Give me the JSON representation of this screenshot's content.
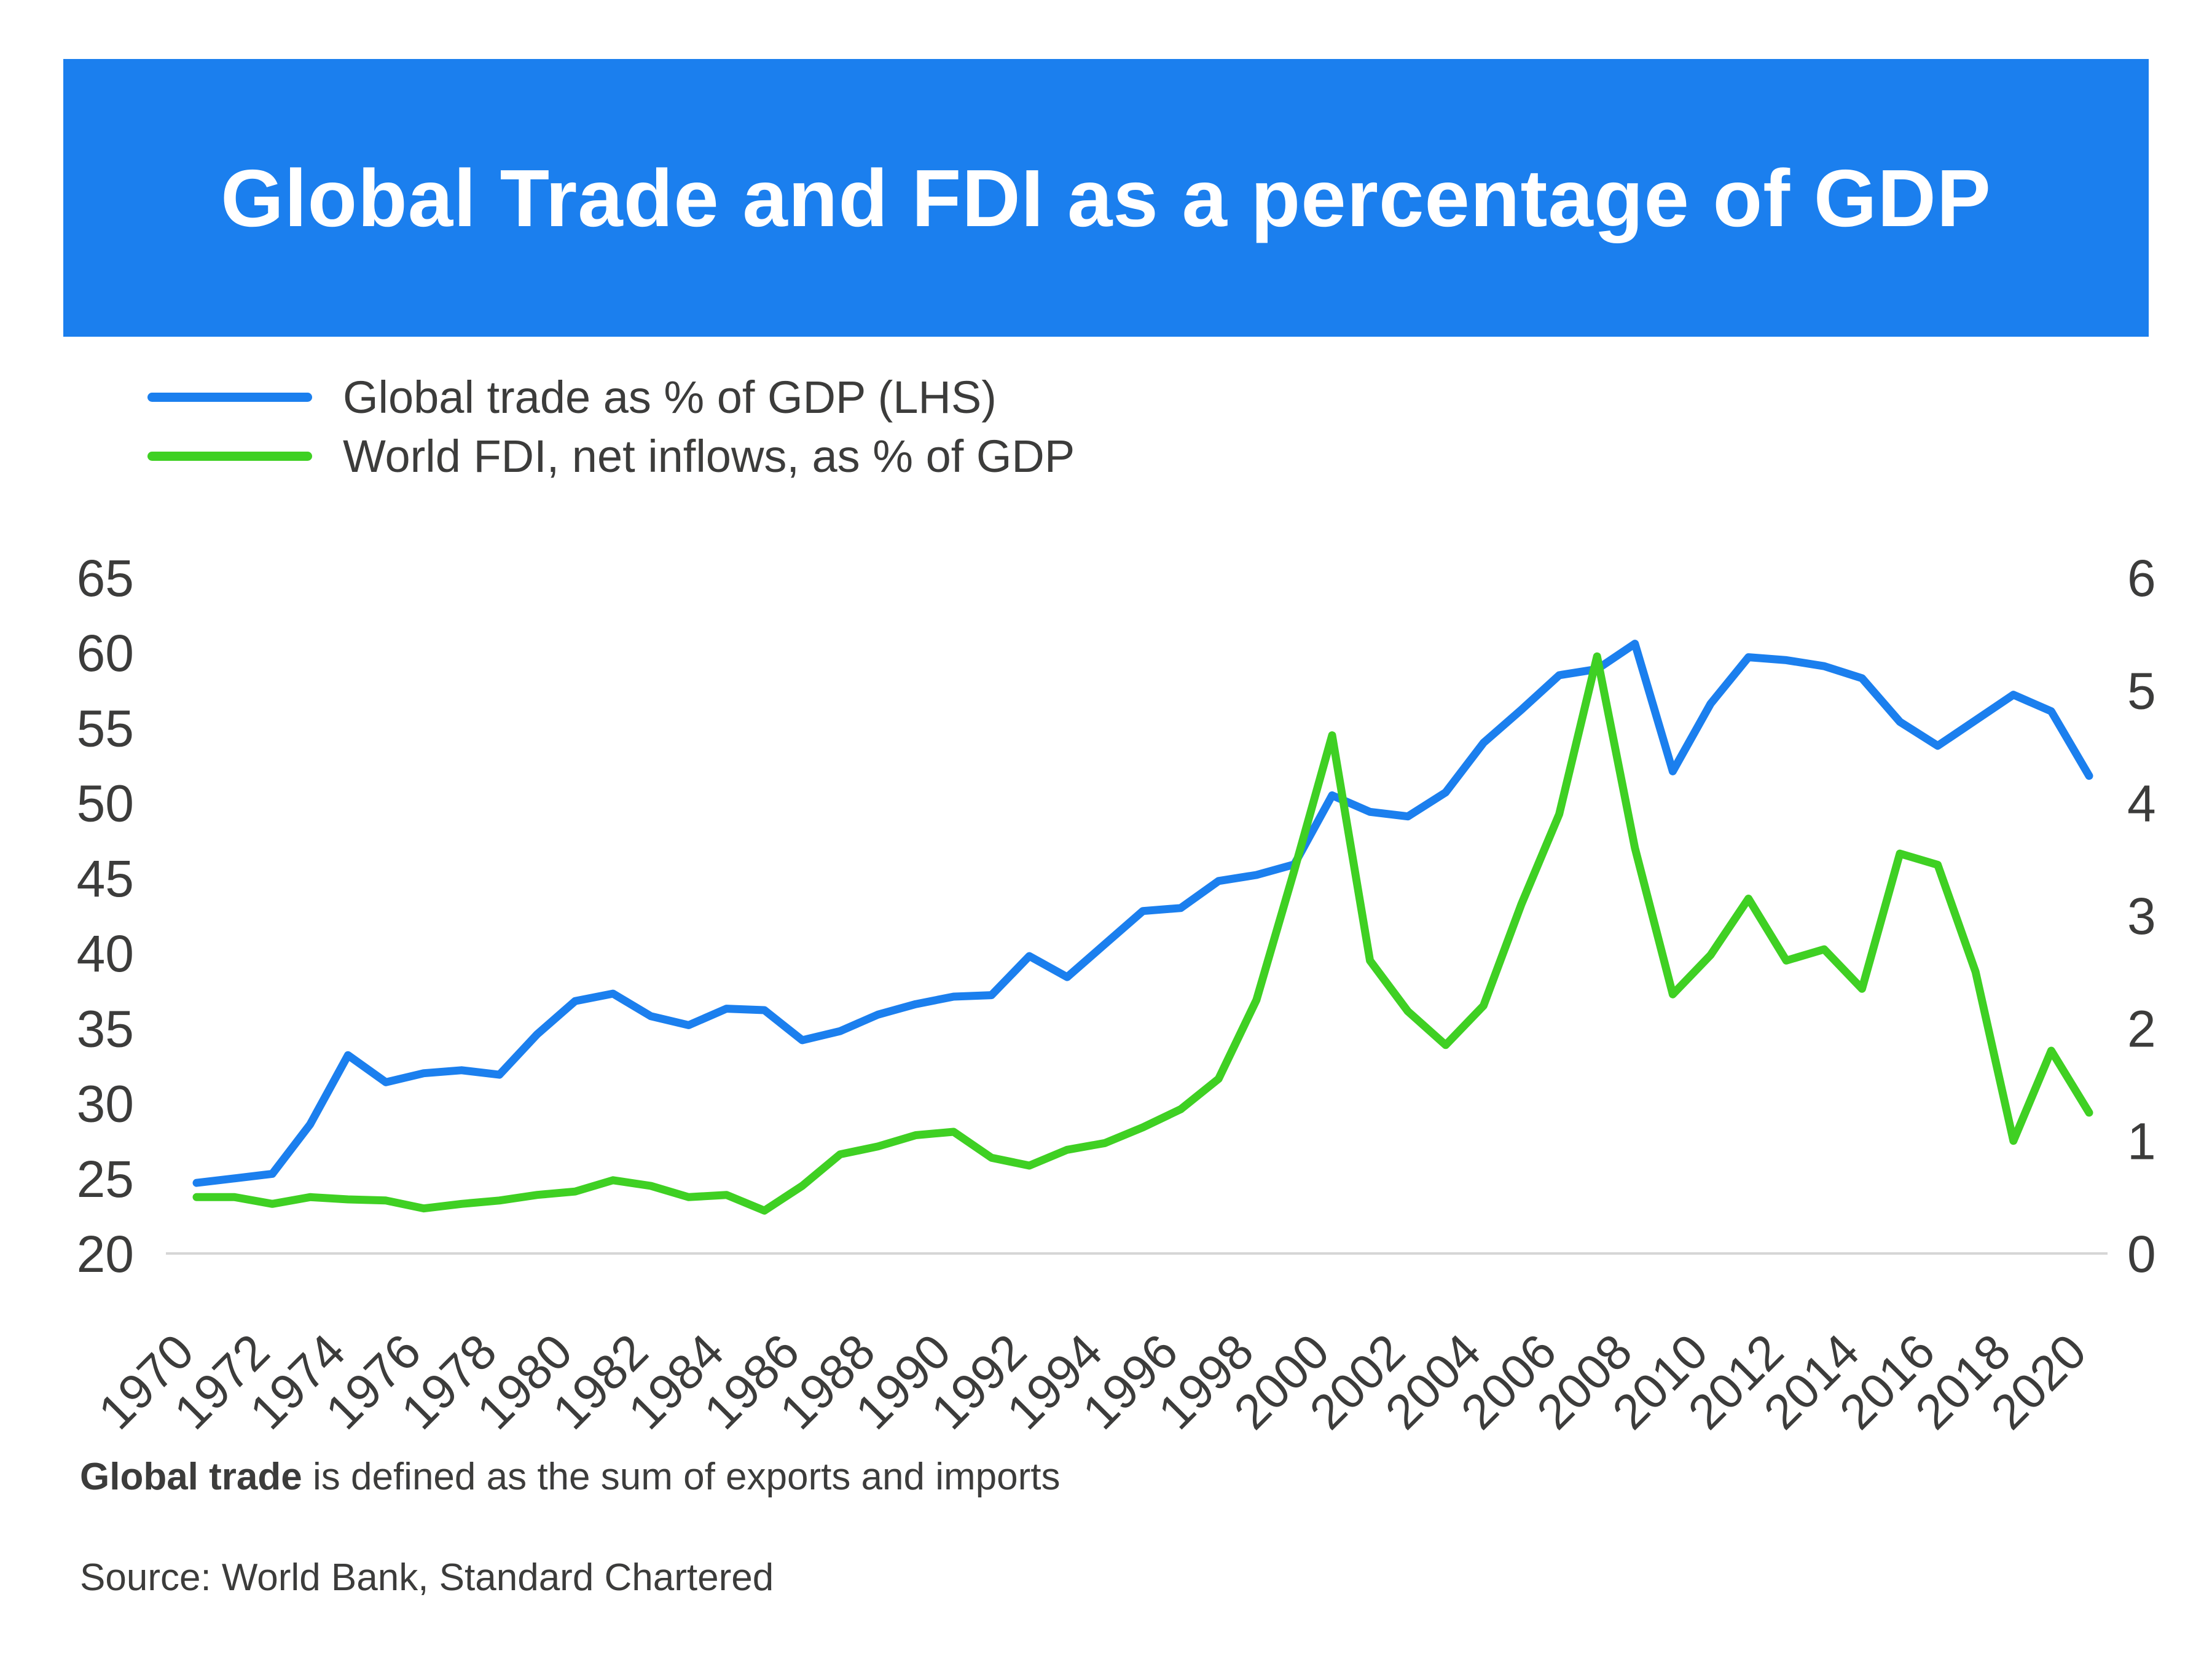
{
  "header": {
    "title": "Global Trade and FDI as a percentage of GDP",
    "bg_color": "#1b7fee"
  },
  "legend": [
    {
      "label": "Global trade as % of GDP (LHS)",
      "color": "#1b7fee"
    },
    {
      "label": "World FDI, net inflows, as % of GDP",
      "color": "#3fd023"
    }
  ],
  "chart_data": {
    "type": "line",
    "title": "Global Trade and FDI as a percentage of GDP",
    "xlabel": "",
    "ylabel_left": "Global trade as % of GDP",
    "ylabel_right": "World FDI, net inflows, as % of GDP",
    "grid": false,
    "x": [
      1970,
      1971,
      1972,
      1973,
      1974,
      1975,
      1976,
      1977,
      1978,
      1979,
      1980,
      1981,
      1982,
      1983,
      1984,
      1985,
      1986,
      1987,
      1988,
      1989,
      1990,
      1991,
      1992,
      1993,
      1994,
      1995,
      1996,
      1997,
      1998,
      1999,
      2000,
      2001,
      2002,
      2003,
      2004,
      2005,
      2006,
      2007,
      2008,
      2009,
      2010,
      2011,
      2012,
      2013,
      2014,
      2015,
      2016,
      2017,
      2018,
      2019,
      2020
    ],
    "x_tick_labels": [
      "1970",
      "1972",
      "1974",
      "1976",
      "1978",
      "1980",
      "1982",
      "1984",
      "1986",
      "1988",
      "1990",
      "1992",
      "1994",
      "1996",
      "1998",
      "2000",
      "2002",
      "2004",
      "2006",
      "2008",
      "2010",
      "2012",
      "2014",
      "2016",
      "2018",
      "2020"
    ],
    "left_axis": {
      "min": 20,
      "max": 65,
      "ticks": [
        65,
        60,
        55,
        50,
        45,
        40,
        35,
        30,
        25,
        20
      ]
    },
    "right_axis": {
      "min": 0,
      "max": 6,
      "ticks": [
        6,
        5,
        4,
        3,
        2,
        1,
        0
      ]
    },
    "series": [
      {
        "name": "Global trade as % of GDP (LHS)",
        "axis": "left",
        "color": "#1b7fee",
        "values": [
          24.7,
          25.0,
          25.3,
          28.6,
          33.2,
          31.4,
          32.0,
          32.2,
          31.9,
          34.6,
          36.8,
          37.3,
          35.8,
          35.2,
          36.3,
          36.2,
          34.2,
          34.8,
          35.9,
          36.6,
          37.1,
          37.2,
          39.8,
          38.4,
          40.6,
          42.8,
          43.0,
          44.8,
          45.2,
          45.9,
          50.5,
          49.4,
          49.1,
          50.7,
          54.0,
          56.2,
          58.5,
          58.9,
          60.6,
          52.1,
          56.6,
          59.7,
          59.5,
          59.1,
          58.3,
          55.4,
          53.8,
          55.5,
          57.2,
          56.1,
          51.8
        ]
      },
      {
        "name": "World FDI, net inflows, as % of GDP",
        "axis": "right",
        "color": "#3fd023",
        "values": [
          0.5,
          0.5,
          0.44,
          0.5,
          0.48,
          0.47,
          0.4,
          0.44,
          0.47,
          0.52,
          0.55,
          0.65,
          0.6,
          0.5,
          0.52,
          0.38,
          0.6,
          0.88,
          0.95,
          1.05,
          1.08,
          0.85,
          0.78,
          0.92,
          0.98,
          1.12,
          1.28,
          1.55,
          2.25,
          3.4,
          4.6,
          2.6,
          2.15,
          1.85,
          2.2,
          3.1,
          3.9,
          5.3,
          3.6,
          2.3,
          2.65,
          3.15,
          2.6,
          2.7,
          2.35,
          3.55,
          3.45,
          2.5,
          1.0,
          1.8,
          1.25
        ]
      }
    ]
  },
  "footnotes": {
    "definition_bold": "Global trade",
    "definition_rest": " is defined as the sum of exports and imports",
    "source": "Source: World Bank, Standard Chartered"
  }
}
